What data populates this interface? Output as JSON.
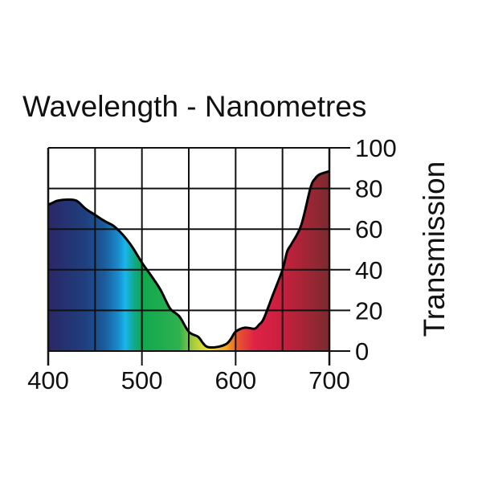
{
  "chart_data": {
    "type": "area",
    "title": "Wavelength - Nanometres",
    "xlabel": "Wavelength - Nanometres",
    "ylabel": "Transmission",
    "xlim": [
      400,
      700
    ],
    "ylim": [
      0,
      100
    ],
    "x_ticks": [
      400,
      500,
      600,
      700
    ],
    "y_ticks": [
      0,
      20,
      40,
      60,
      80,
      100
    ],
    "x_tick_labels": [
      "400",
      "500",
      "600",
      "700"
    ],
    "y_tick_labels": [
      "0",
      "20",
      "40",
      "60",
      "80",
      "100"
    ],
    "grid": true,
    "x_grid_step": 50,
    "y_grid_step": 20,
    "series": [
      {
        "name": "Transmission",
        "x": [
          400,
          405,
          410,
          420,
          430,
          440,
          450,
          460,
          470,
          480,
          490,
          500,
          510,
          520,
          530,
          540,
          550,
          560,
          565,
          570,
          580,
          590,
          595,
          600,
          610,
          620,
          625,
          630,
          640,
          650,
          655,
          660,
          670,
          680,
          685,
          690,
          700
        ],
        "y": [
          72,
          73,
          74,
          74.5,
          74,
          70,
          67,
          64,
          61.5,
          57,
          51,
          43.5,
          37,
          30,
          21,
          17,
          9.5,
          7,
          4,
          2,
          2,
          3.5,
          6,
          9.5,
          11.5,
          11,
          13,
          16,
          28,
          40,
          49,
          53,
          62,
          80.5,
          85,
          87,
          88.5
        ]
      }
    ],
    "spectrum_colors": [
      {
        "nm": 400,
        "color": "#2b2766"
      },
      {
        "nm": 440,
        "color": "#1f3f7f"
      },
      {
        "nm": 460,
        "color": "#1b5c9c"
      },
      {
        "nm": 475,
        "color": "#1a8ccc"
      },
      {
        "nm": 482,
        "color": "#18b6ec"
      },
      {
        "nm": 492,
        "color": "#12a88a"
      },
      {
        "nm": 500,
        "color": "#0fa84f"
      },
      {
        "nm": 540,
        "color": "#2fb14f"
      },
      {
        "nm": 555,
        "color": "#a8cc3e"
      },
      {
        "nm": 570,
        "color": "#eee22e"
      },
      {
        "nm": 590,
        "color": "#f3a422"
      },
      {
        "nm": 603,
        "color": "#e8532f"
      },
      {
        "nm": 620,
        "color": "#de2347"
      },
      {
        "nm": 650,
        "color": "#c91f3d"
      },
      {
        "nm": 700,
        "color": "#7a2b2e"
      }
    ]
  }
}
